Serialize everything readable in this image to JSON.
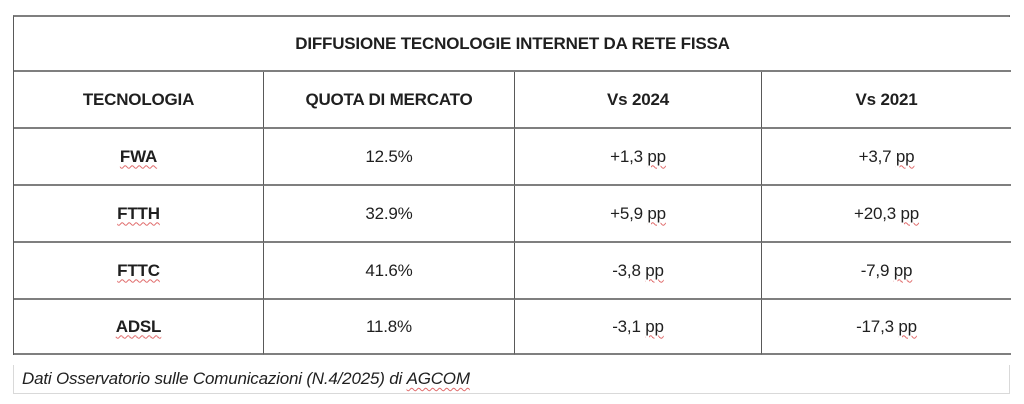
{
  "table": {
    "title": "DIFFUSIONE TECNOLOGIE INTERNET DA RETE FISSA",
    "columns": [
      "TECNOLOGIA",
      "QUOTA DI MERCATO",
      "Vs 2024",
      "Vs 2021"
    ],
    "unit": "pp",
    "rows": [
      {
        "tecnologia": "FWA",
        "quota_di_mercato": "12.5%",
        "vs_2024": "+1,3",
        "vs_2021": "+3,7"
      },
      {
        "tecnologia": "FTTH",
        "quota_di_mercato": "32.9%",
        "vs_2024": "+5,9",
        "vs_2021": "+20,3"
      },
      {
        "tecnologia": "FTTC",
        "quota_di_mercato": "41.6%",
        "vs_2024": "-3,8",
        "vs_2021": "-7,9"
      },
      {
        "tecnologia": "ADSL",
        "quota_di_mercato": "11.8%",
        "vs_2024": "-3,1",
        "vs_2021": "-17,3"
      }
    ],
    "footer": {
      "text": "Dati Osservatorio sulle Comunicazioni (N.4/2025) di",
      "source": "AGCOM"
    },
    "colors": {
      "border_horizontal": "#7f7f7f",
      "border_vertical": "#595959",
      "footer_border": "#d9d9d9",
      "text": "#1f1f1f",
      "spellcheck_squiggle": "#e06a6a"
    }
  }
}
